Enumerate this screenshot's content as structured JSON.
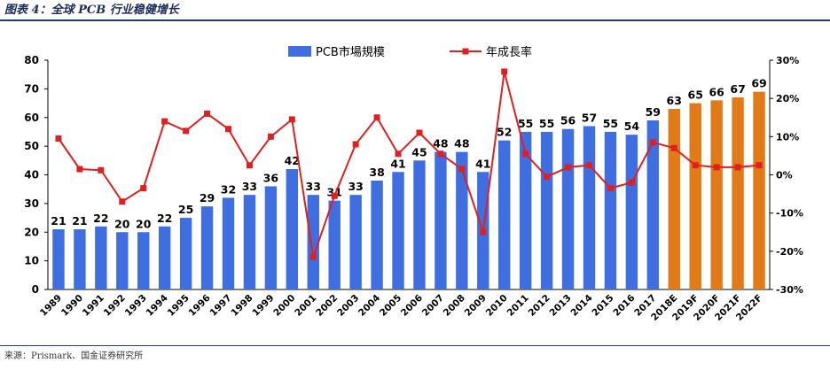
{
  "figure": {
    "title": "图表 4：全球 PCB 行业稳健增长",
    "source": "来源：Prismark、国金证券研究所"
  },
  "colors": {
    "bar_actual": "#3f6ee0",
    "bar_forecast": "#e07b17",
    "line": "#e02020",
    "title": "#1a2c57",
    "rule": "#1f3b6e"
  },
  "chart_data": {
    "type": "bar+line",
    "categories": [
      "1989",
      "1990",
      "1991",
      "1992",
      "1993",
      "1994",
      "1995",
      "1996",
      "1997",
      "1998",
      "1999",
      "2000",
      "2001",
      "2002",
      "2003",
      "2004",
      "2005",
      "2006",
      "2007",
      "2008",
      "2009",
      "2010",
      "2011",
      "2012",
      "2013",
      "2014",
      "2015",
      "2016",
      "2017",
      "2018E",
      "2019F",
      "2020F",
      "2021F",
      "2022F"
    ],
    "series": [
      {
        "name": "PCB市場規模",
        "type": "bar",
        "axis": "left",
        "values": [
          21,
          21,
          22,
          20,
          20,
          22,
          25,
          29,
          32,
          33,
          36,
          42,
          33,
          31,
          33,
          38,
          41,
          45,
          48,
          48,
          41,
          52,
          55,
          55,
          56,
          57,
          55,
          54,
          59,
          63,
          65,
          66,
          67,
          69
        ],
        "labels": [
          "21",
          "21",
          "22",
          "20",
          "20",
          "22",
          "25",
          "29",
          "32",
          "33",
          "36",
          "42",
          "33",
          "31",
          "33",
          "38",
          "41",
          "45",
          "48",
          "48",
          "41",
          "52",
          "55",
          "55",
          "56",
          "57",
          "55",
          "54",
          "59",
          "63",
          "65",
          "66",
          "67",
          "69"
        ],
        "forecast_from_index": 29
      },
      {
        "name": "年成長率",
        "type": "line",
        "axis": "right",
        "values": [
          9.5,
          1.5,
          1.2,
          -7.0,
          -3.5,
          14.0,
          11.5,
          16.0,
          12.0,
          2.5,
          10.0,
          14.5,
          -21.5,
          -5.5,
          8.0,
          15.0,
          5.5,
          11.0,
          5.5,
          1.5,
          -15.0,
          27.0,
          5.5,
          -0.5,
          2.0,
          2.5,
          -3.5,
          -2.0,
          8.5,
          7.0,
          2.5,
          2.0,
          2.0,
          2.5
        ]
      }
    ],
    "y_left": {
      "min": 0,
      "max": 80,
      "ticks": [
        "0",
        "10",
        "20",
        "30",
        "40",
        "50",
        "60",
        "70",
        "80"
      ]
    },
    "y_right": {
      "min": -30,
      "max": 30,
      "ticks": [
        "-30%",
        "-20%",
        "-10%",
        "0%",
        "10%",
        "20%",
        "30%"
      ]
    },
    "grid": false,
    "legend_position": "top-center"
  }
}
